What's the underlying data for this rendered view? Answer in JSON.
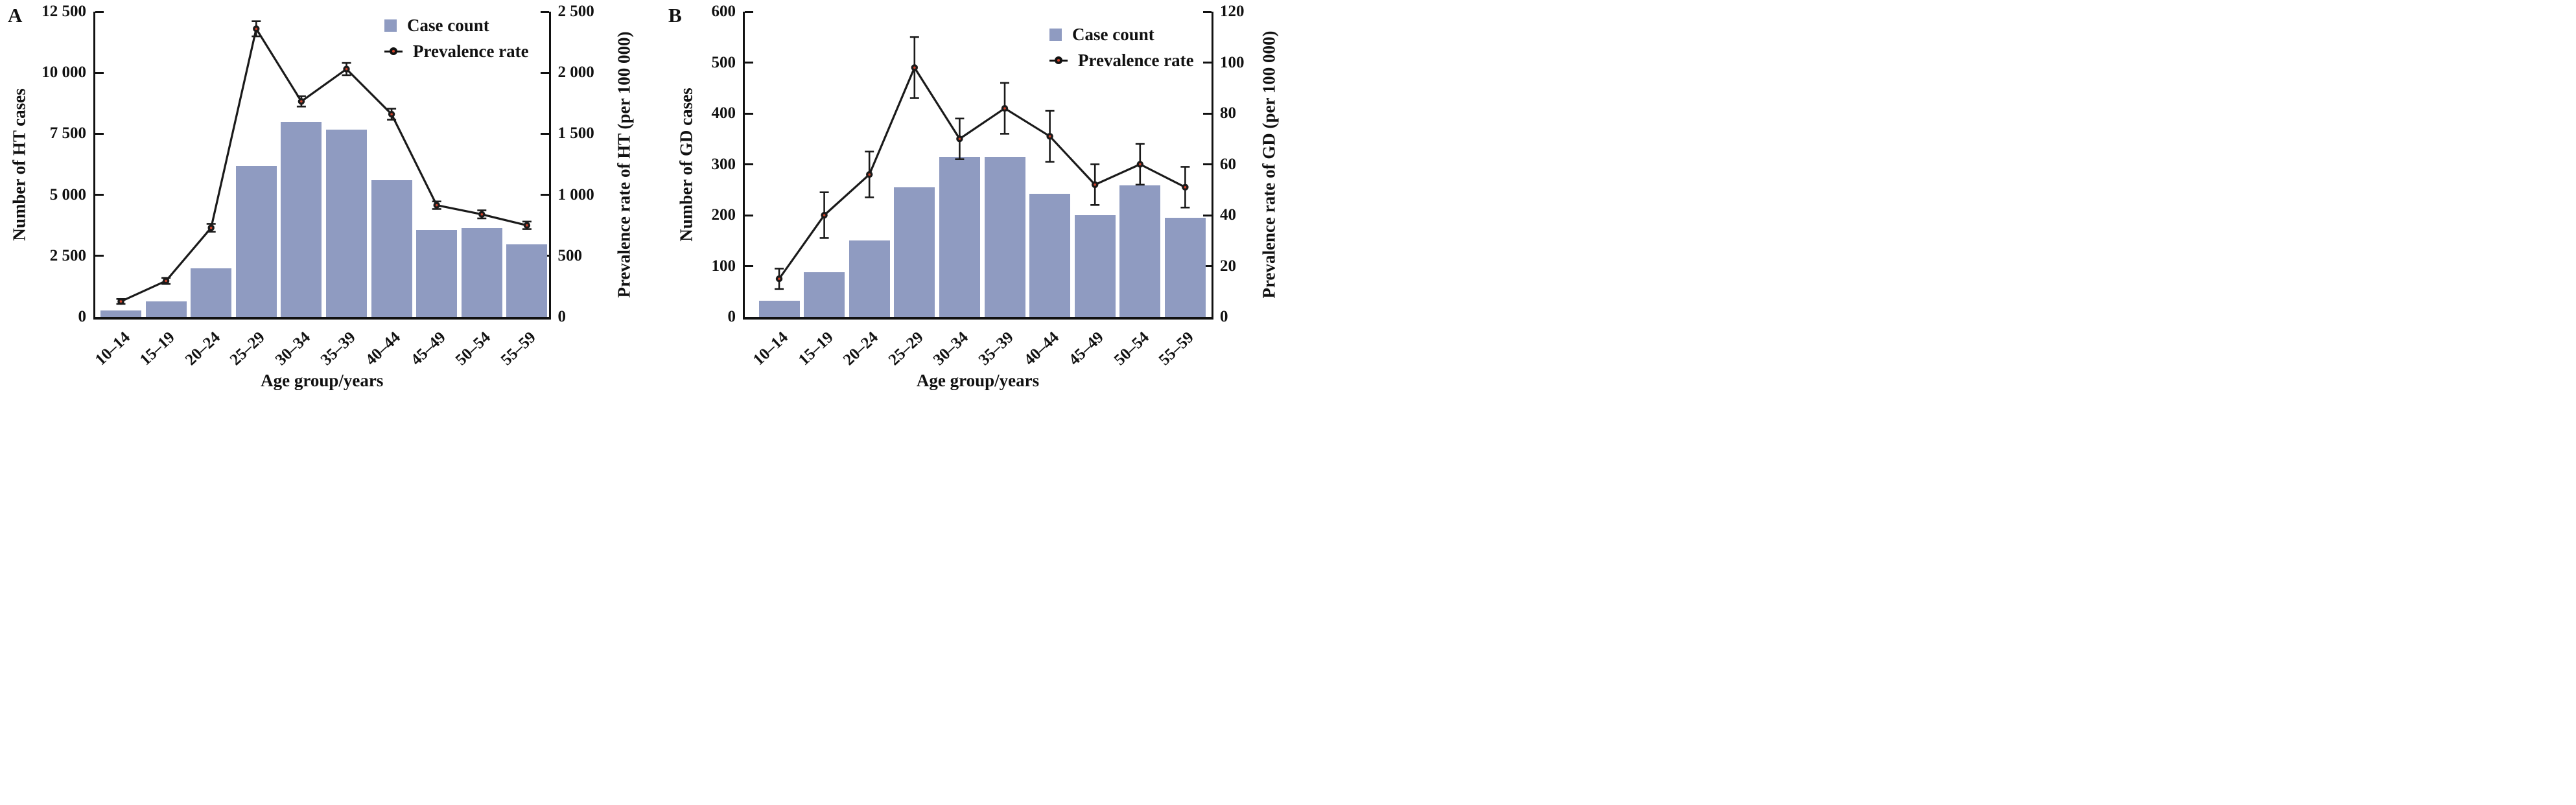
{
  "colors": {
    "bar": "#8F9BC1",
    "axis": "#111111",
    "line": "#1A1A1A",
    "marker_dot": "#D0442C",
    "background": "#FFFFFF"
  },
  "chart_data": [
    {
      "panel_label": "A",
      "type": "bar",
      "grid": false,
      "categories": [
        "10–14",
        "15–19",
        "20–24",
        "25–29",
        "30–34",
        "35–39",
        "40–44",
        "45–49",
        "50–54",
        "55–59"
      ],
      "xlabel": "Age group/years",
      "left_axis": {
        "title": "Number of HT cases",
        "min": 0,
        "max": 12500,
        "tick_step": 2500,
        "tick_labels": [
          "0",
          "2 500",
          "5 000",
          "7 500",
          "10 000",
          "12 500"
        ]
      },
      "right_axis": {
        "title": "Prevalence rate of HT (per 100 000)",
        "min": 0,
        "max": 2500,
        "tick_step": 500,
        "tick_labels": [
          "0",
          "500",
          "1 000",
          "1 500",
          "2 000",
          "2 500"
        ]
      },
      "legend": {
        "position": "top-right-inside",
        "items": [
          "Case count",
          "Prevalence rate"
        ]
      },
      "series": [
        {
          "name": "Case count",
          "type": "bar",
          "axis": "left",
          "values": [
            270,
            640,
            1990,
            6180,
            8000,
            7680,
            5590,
            3560,
            3640,
            2960
          ]
        },
        {
          "name": "Prevalence rate",
          "type": "line",
          "axis": "right",
          "values": [
            127,
            295,
            730,
            2360,
            1765,
            2030,
            1660,
            915,
            840,
            750
          ],
          "error_bars": [
            20,
            25,
            32,
            62,
            42,
            50,
            45,
            31,
            33,
            31
          ]
        }
      ]
    },
    {
      "panel_label": "B",
      "type": "bar",
      "grid": false,
      "categories": [
        "10–14",
        "15–19",
        "20–24",
        "25–29",
        "30–34",
        "35–39",
        "40–44",
        "45–49",
        "50–54",
        "55–59"
      ],
      "xlabel": "Age group/years",
      "left_axis": {
        "title": "Number of GD cases",
        "min": 0,
        "max": 600,
        "tick_step": 100,
        "tick_labels": [
          "0",
          "100",
          "200",
          "300",
          "400",
          "500",
          "600"
        ]
      },
      "right_axis": {
        "title": "Prevalence rate of GD (per 100 000)",
        "min": 0,
        "max": 120,
        "tick_step": 20,
        "tick_labels": [
          "0",
          "20",
          "40",
          "60",
          "80",
          "100",
          "120"
        ]
      },
      "legend": {
        "position": "top-right-inside",
        "items": [
          "Case count",
          "Prevalence rate"
        ]
      },
      "series": [
        {
          "name": "Case count",
          "type": "bar",
          "axis": "left",
          "values": [
            32,
            88,
            150,
            255,
            315,
            315,
            242,
            200,
            258,
            195
          ]
        },
        {
          "name": "Prevalence rate",
          "type": "line",
          "axis": "right",
          "values": [
            15,
            40,
            56,
            98,
            70,
            82,
            71,
            52,
            60,
            51
          ],
          "error_bars": [
            4,
            9,
            9,
            12,
            8,
            10,
            10,
            8,
            8,
            8
          ]
        }
      ]
    }
  ]
}
